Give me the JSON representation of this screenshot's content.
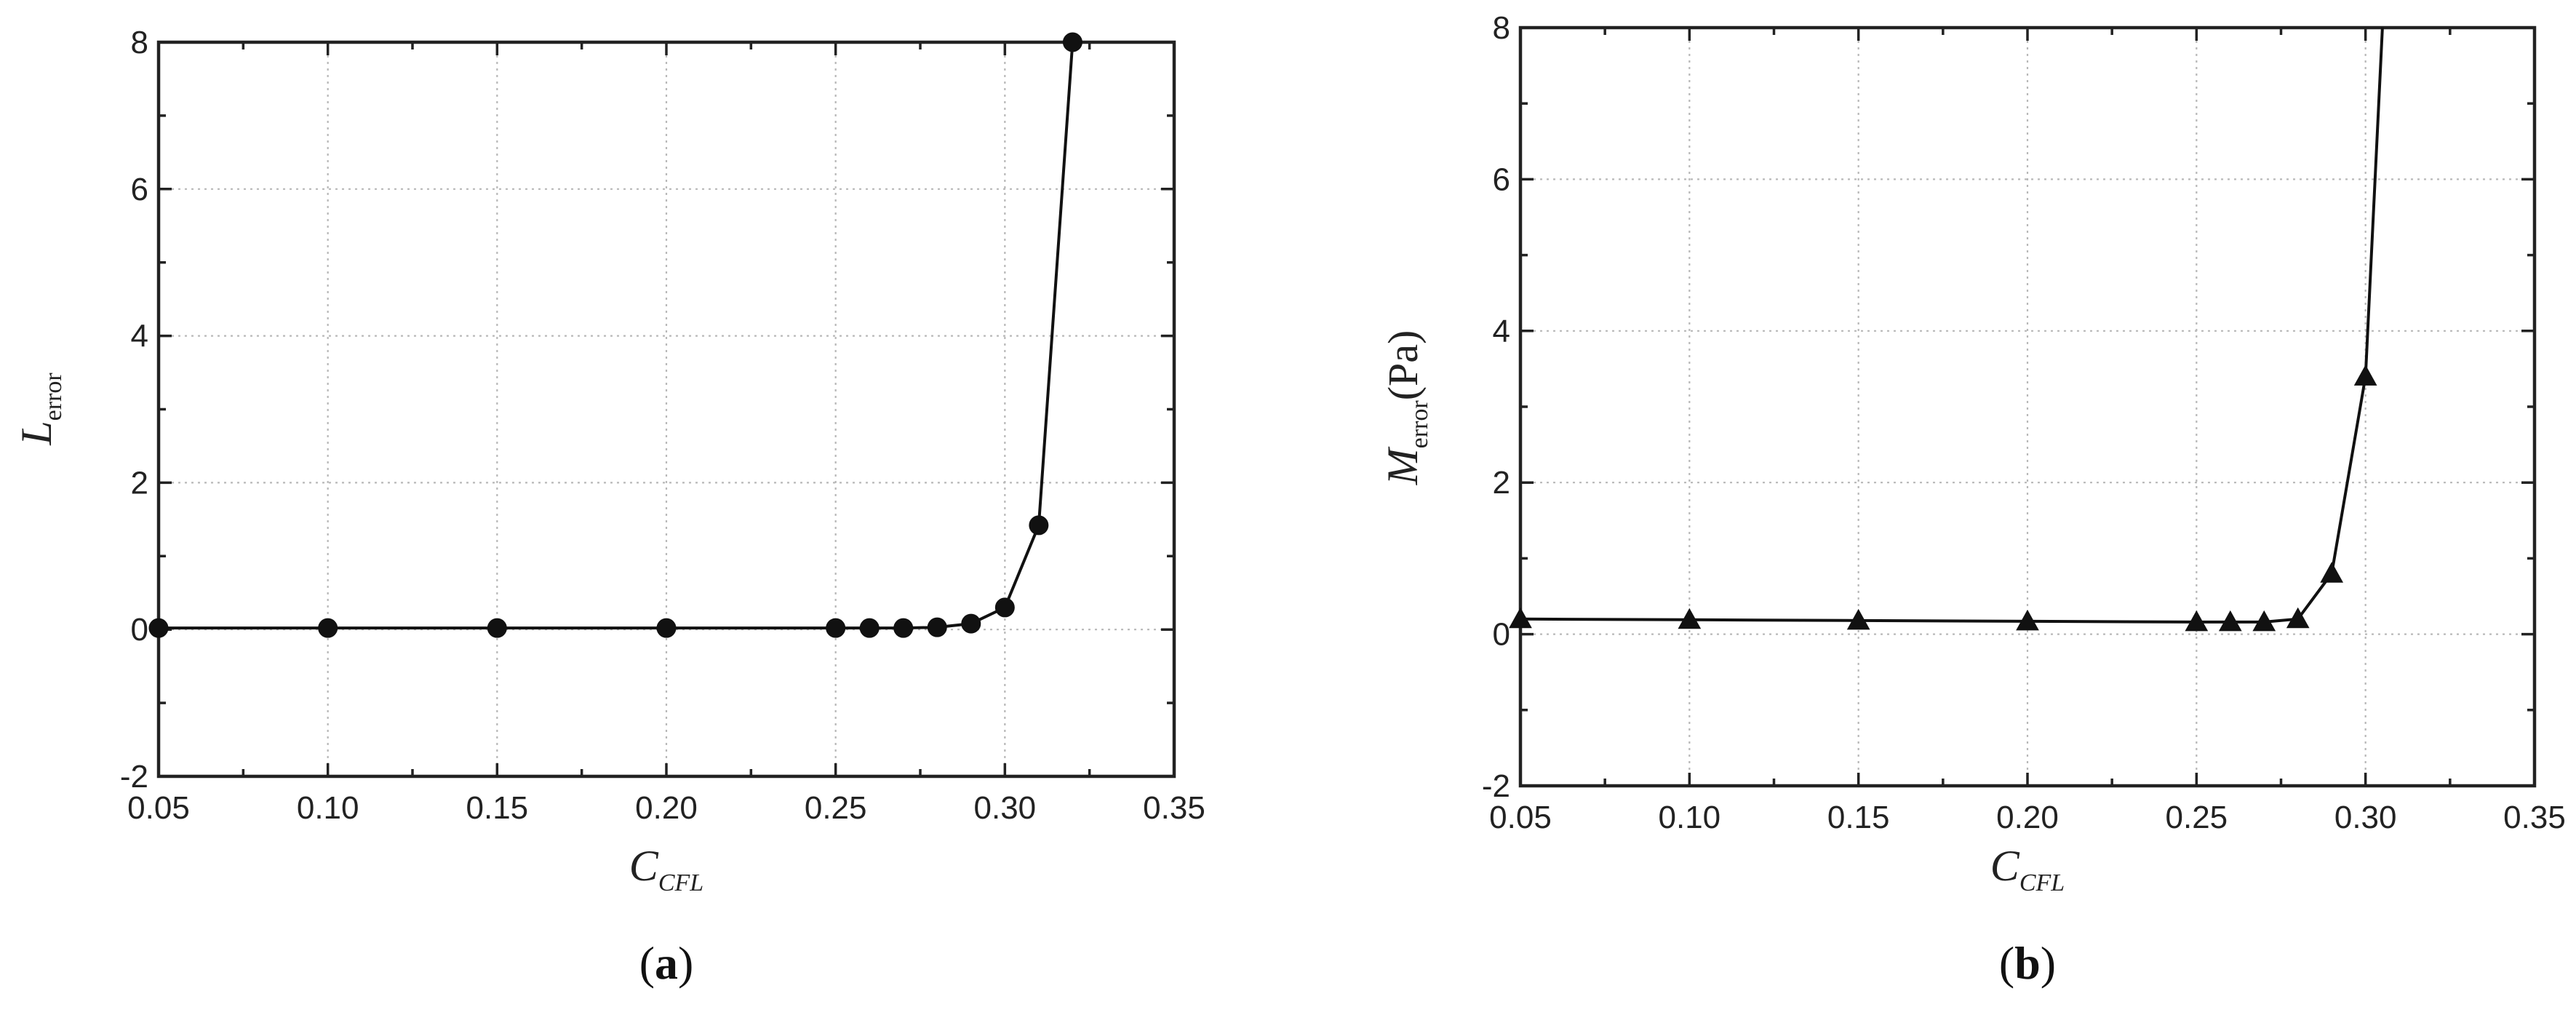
{
  "chart_data": [
    {
      "id": "a",
      "type": "line",
      "panel_label": "a",
      "xlabel": "C",
      "xlabel_sub": "CFL",
      "ylabel": "L",
      "ylabel_sub": "error",
      "ylabel_unit": "",
      "marker": "circle",
      "xlim": [
        0.05,
        0.35
      ],
      "ylim": [
        -2,
        8
      ],
      "x_ticks": [
        "0.05",
        "0.10",
        "0.15",
        "0.20",
        "0.25",
        "0.30",
        "0.35"
      ],
      "y_ticks": [
        "-2",
        "0",
        "2",
        "4",
        "6",
        "8"
      ],
      "grid": true,
      "x": [
        0.05,
        0.1,
        0.15,
        0.2,
        0.25,
        0.26,
        0.27,
        0.28,
        0.29,
        0.3,
        0.31,
        0.32
      ],
      "y": [
        0.02,
        0.02,
        0.02,
        0.02,
        0.02,
        0.02,
        0.02,
        0.03,
        0.08,
        0.3,
        1.42,
        8.0
      ]
    },
    {
      "id": "b",
      "type": "line",
      "panel_label": "b",
      "xlabel": "C",
      "xlabel_sub": "CFL",
      "ylabel": "M",
      "ylabel_sub": "error",
      "ylabel_unit": "(Pa)",
      "marker": "triangle",
      "xlim": [
        0.05,
        0.35
      ],
      "ylim": [
        -2,
        8
      ],
      "x_ticks": [
        "0.05",
        "0.10",
        "0.15",
        "0.20",
        "0.25",
        "0.30",
        "0.35"
      ],
      "y_ticks": [
        "-2",
        "0",
        "2",
        "4",
        "6",
        "8"
      ],
      "grid": true,
      "x": [
        0.05,
        0.1,
        0.15,
        0.2,
        0.25,
        0.26,
        0.27,
        0.28,
        0.29,
        0.3,
        0.305
      ],
      "y": [
        0.2,
        0.19,
        0.18,
        0.17,
        0.16,
        0.16,
        0.16,
        0.2,
        0.8,
        3.4,
        8.0
      ]
    }
  ]
}
